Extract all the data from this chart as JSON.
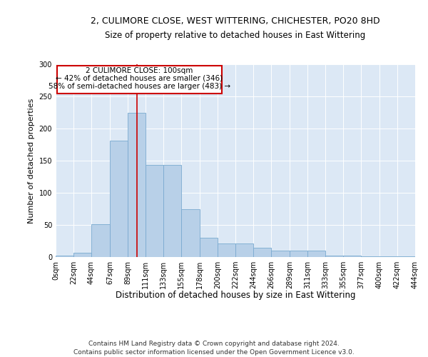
{
  "title": "2, CULIMORE CLOSE, WEST WITTERING, CHICHESTER, PO20 8HD",
  "subtitle": "Size of property relative to detached houses in East Wittering",
  "xlabel": "Distribution of detached houses by size in East Wittering",
  "ylabel": "Number of detached properties",
  "footer_line1": "Contains HM Land Registry data © Crown copyright and database right 2024.",
  "footer_line2": "Contains public sector information licensed under the Open Government Licence v3.0.",
  "annotation_line1": "2 CULIMORE CLOSE: 100sqm",
  "annotation_line2": "← 42% of detached houses are smaller (346)",
  "annotation_line3": "58% of semi-detached houses are larger (483) →",
  "property_size_sqm": 100,
  "bin_edges": [
    0,
    22,
    44,
    67,
    89,
    111,
    133,
    155,
    178,
    200,
    222,
    244,
    266,
    289,
    311,
    333,
    355,
    377,
    400,
    422,
    444
  ],
  "bar_heights": [
    2,
    7,
    51,
    181,
    224,
    143,
    143,
    74,
    30,
    21,
    21,
    15,
    10,
    10,
    10,
    2,
    2,
    1,
    1,
    1
  ],
  "bar_color": "#b8d0e8",
  "bar_edge_color": "#7aaad0",
  "vline_x": 100,
  "vline_color": "#cc0000",
  "ylim": [
    0,
    300
  ],
  "yticks": [
    0,
    50,
    100,
    150,
    200,
    250,
    300
  ],
  "grid_color": "#ffffff",
  "plot_bg_color": "#dce8f5",
  "annotation_box_color": "white",
  "annotation_box_edge": "#cc0000",
  "title_fontsize": 9,
  "subtitle_fontsize": 8.5,
  "ylabel_fontsize": 8,
  "xlabel_fontsize": 8.5,
  "tick_fontsize": 7,
  "annotation_fontsize": 7.5,
  "footer_fontsize": 6.5
}
